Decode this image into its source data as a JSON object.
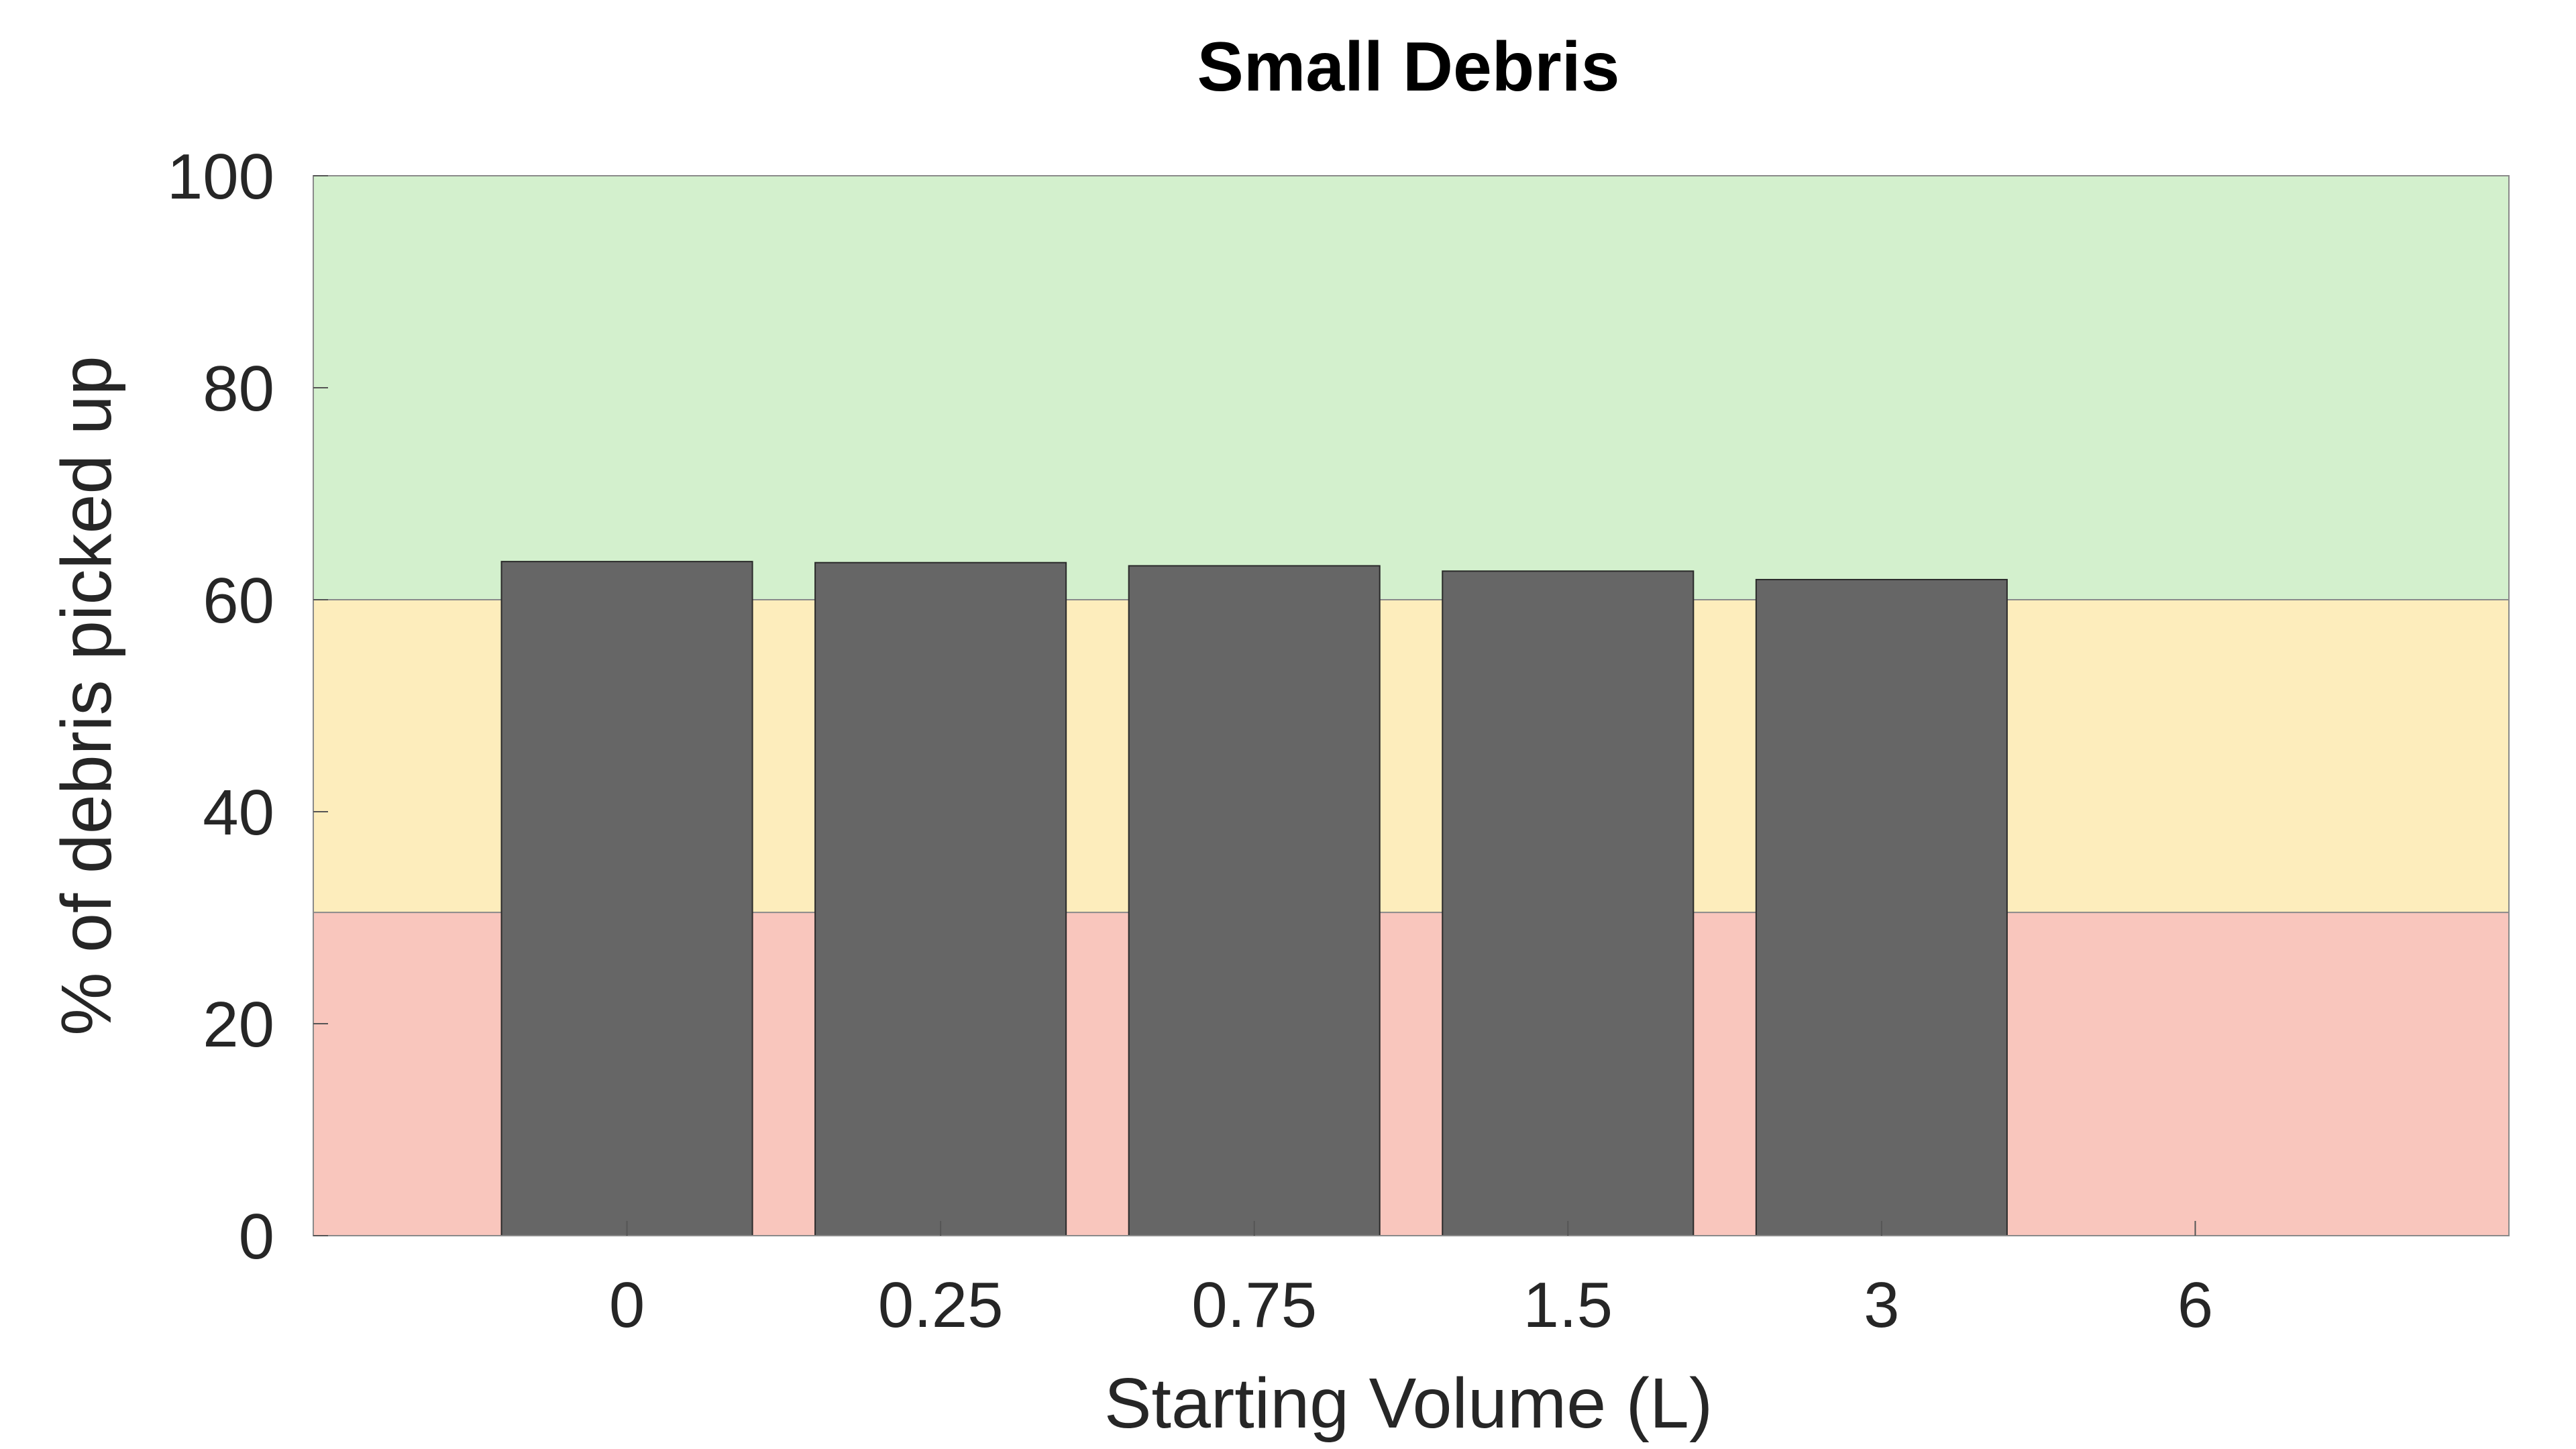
{
  "chart_data": {
    "type": "bar",
    "title": "Small Debris",
    "xlabel": "Starting Volume (L)",
    "ylabel": "% of debris picked up",
    "categories": [
      "0",
      "0.25",
      "0.75",
      "1.5",
      "3",
      "6"
    ],
    "values": [
      63.6,
      63.5,
      63.2,
      62.7,
      61.9,
      null
    ],
    "ylim": [
      0,
      100
    ],
    "yticks": [
      "0",
      "20",
      "40",
      "60",
      "80",
      "100"
    ],
    "bar_color": "#666666",
    "background_bands": [
      {
        "from": 0,
        "to": 30.5,
        "color": "#f9c6bd"
      },
      {
        "from": 30.5,
        "to": 60,
        "color": "#fdedbc"
      },
      {
        "from": 60,
        "to": 100,
        "color": "#d3f0cd"
      }
    ],
    "grid": false,
    "legend": "none"
  }
}
